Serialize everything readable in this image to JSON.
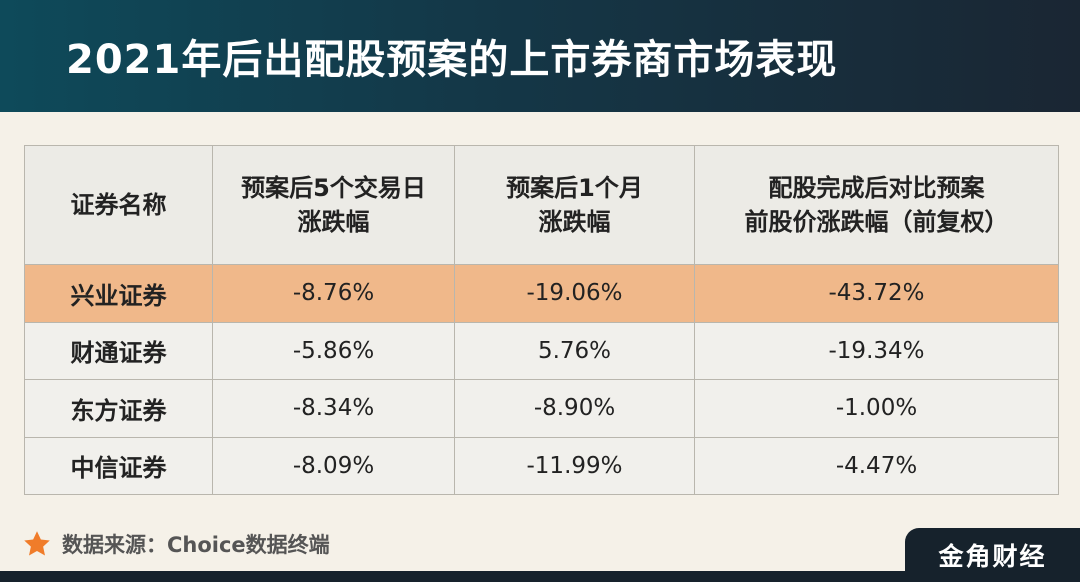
{
  "title": "2021年后出配股预案的上市券商市场表现",
  "table": {
    "headers": [
      [
        "证券名称"
      ],
      [
        "预案后5个交易日",
        "涨跌幅"
      ],
      [
        "预案后1个月",
        "涨跌幅"
      ],
      [
        "配股完成后对比预案",
        "前股价涨跌幅（前复权）"
      ]
    ],
    "rows": [
      {
        "name": "兴业证券",
        "d5": "-8.76%",
        "m1": "-19.06%",
        "post": "-43.72%",
        "highlight": true
      },
      {
        "name": "财通证券",
        "d5": "-5.86%",
        "m1": "5.76%",
        "post": "-19.34%",
        "highlight": false
      },
      {
        "name": "东方证券",
        "d5": "-8.34%",
        "m1": "-8.90%",
        "post": "-1.00%",
        "highlight": false
      },
      {
        "name": "中信证券",
        "d5": "-8.09%",
        "m1": "-11.99%",
        "post": "-4.47%",
        "highlight": false
      }
    ]
  },
  "source": {
    "text": "数据来源：Choice数据终端",
    "icon": "star-icon",
    "icon_color": "#f07c2a"
  },
  "brand": "金角财经",
  "colors": {
    "highlight_row": "#f0b88a",
    "header_bg": "#143747",
    "dark": "#16222c"
  }
}
